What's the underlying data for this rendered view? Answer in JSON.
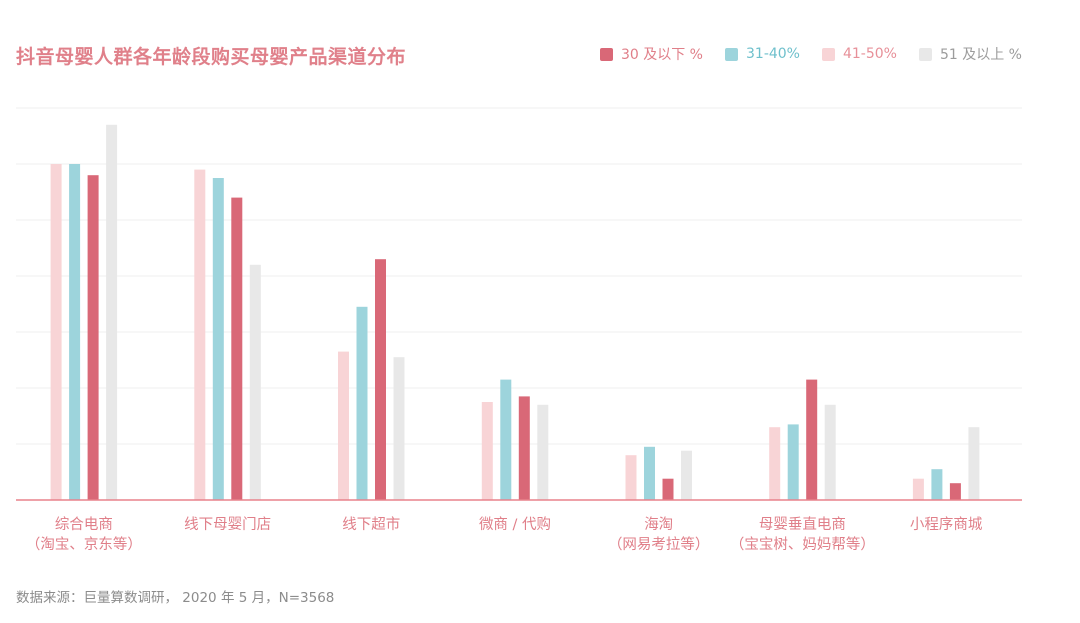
{
  "title": "抖音母婴人群各年龄段购买母婴产品渠道分布",
  "source": "数据来源：巨量算数调研， 2020 年 5 月，N=3568",
  "chart_data": {
    "type": "bar",
    "title": "抖音母婴人群各年龄段购买母婴产品渠道分布",
    "xlabel": "",
    "ylabel": "",
    "ylim": [
      0,
      7
    ],
    "grid": true,
    "legend_position": "top-right",
    "categories": [
      [
        "综合电商",
        "（淘宝、京东等）"
      ],
      [
        "线下母婴门店"
      ],
      [
        "线下超市"
      ],
      [
        "微商 / 代购"
      ],
      [
        "海淘",
        "（网易考拉等）"
      ],
      [
        "母婴垂直电商",
        "（宝宝树、妈妈帮等）"
      ],
      [
        "小程序商城"
      ]
    ],
    "series_order_in_group": [
      2,
      1,
      0,
      3
    ],
    "series": [
      {
        "name": "30 及以下 %",
        "color": "#d96877",
        "text_color": "#e07f89",
        "values": [
          5.8,
          5.4,
          4.3,
          1.85,
          0.38,
          2.15,
          0.3
        ]
      },
      {
        "name": "31-40%",
        "color": "#9dd4dc",
        "text_color": "#6fc0cc",
        "values": [
          6.0,
          5.75,
          3.45,
          2.15,
          0.95,
          1.35,
          0.55
        ]
      },
      {
        "name": "41-50%",
        "color": "#f8d4d6",
        "text_color": "#e79099",
        "values": [
          6.0,
          5.9,
          2.65,
          1.75,
          0.8,
          1.3,
          0.38
        ]
      },
      {
        "name": "51 及以上 %",
        "color": "#e8e8e8",
        "text_color": "#9c9c9c",
        "values": [
          6.7,
          4.2,
          2.55,
          1.7,
          0.88,
          1.7,
          1.3
        ]
      }
    ]
  }
}
